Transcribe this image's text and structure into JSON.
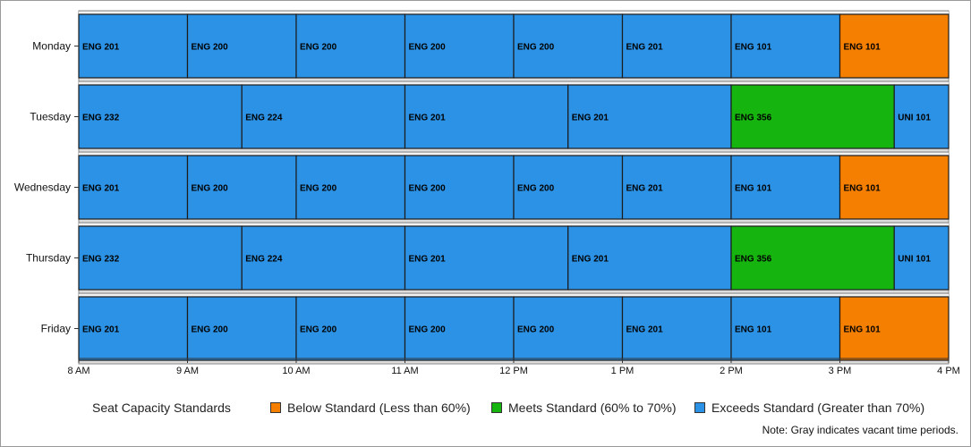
{
  "chart_data": {
    "type": "gantt",
    "title": "",
    "xlabel": "",
    "ylabel": "",
    "x_ticks": [
      "8 AM",
      "9 AM",
      "10 AM",
      "11 AM",
      "12 PM",
      "1 PM",
      "2 PM",
      "3 PM",
      "4 PM"
    ],
    "x_range": [
      "8 AM",
      "4 PM"
    ],
    "categories": [
      "Monday",
      "Tuesday",
      "Wednesday",
      "Thursday",
      "Friday"
    ],
    "grid": false,
    "legend_placement": "bottom",
    "colors": {
      "below": "#f57f00",
      "meets": "#16b40f",
      "exceeds": "#2b92e6",
      "vacant": "#d8d8d8"
    },
    "rows": [
      {
        "day": "Monday",
        "sessions": [
          {
            "course": "ENG 201",
            "start": "8:00 AM",
            "end": "9:00 AM",
            "status": "exceeds"
          },
          {
            "course": "ENG 200",
            "start": "9:00 AM",
            "end": "10:00 AM",
            "status": "exceeds"
          },
          {
            "course": "ENG 200",
            "start": "10:00 AM",
            "end": "11:00 AM",
            "status": "exceeds"
          },
          {
            "course": "ENG 200",
            "start": "11:00 AM",
            "end": "12:00 PM",
            "status": "exceeds"
          },
          {
            "course": "ENG 200",
            "start": "12:00 PM",
            "end": "1:00 PM",
            "status": "exceeds"
          },
          {
            "course": "ENG 201",
            "start": "1:00 PM",
            "end": "2:00 PM",
            "status": "exceeds"
          },
          {
            "course": "ENG 101",
            "start": "2:00 PM",
            "end": "3:00 PM",
            "status": "exceeds"
          },
          {
            "course": "ENG 101",
            "start": "3:00 PM",
            "end": "4:00 PM",
            "status": "below"
          }
        ]
      },
      {
        "day": "Tuesday",
        "sessions": [
          {
            "course": "ENG 232",
            "start": "8:00 AM",
            "end": "9:30 AM",
            "status": "exceeds"
          },
          {
            "course": "ENG 224",
            "start": "9:30 AM",
            "end": "11:00 AM",
            "status": "exceeds"
          },
          {
            "course": "ENG 201",
            "start": "11:00 AM",
            "end": "12:30 PM",
            "status": "exceeds"
          },
          {
            "course": "ENG 201",
            "start": "12:30 PM",
            "end": "2:00 PM",
            "status": "exceeds"
          },
          {
            "course": "ENG 356",
            "start": "2:00 PM",
            "end": "3:30 PM",
            "status": "meets"
          },
          {
            "course": "UNI 101",
            "start": "3:30 PM",
            "end": "4:00 PM",
            "status": "exceeds"
          }
        ]
      },
      {
        "day": "Wednesday",
        "sessions": [
          {
            "course": "ENG 201",
            "start": "8:00 AM",
            "end": "9:00 AM",
            "status": "exceeds"
          },
          {
            "course": "ENG 200",
            "start": "9:00 AM",
            "end": "10:00 AM",
            "status": "exceeds"
          },
          {
            "course": "ENG 200",
            "start": "10:00 AM",
            "end": "11:00 AM",
            "status": "exceeds"
          },
          {
            "course": "ENG 200",
            "start": "11:00 AM",
            "end": "12:00 PM",
            "status": "exceeds"
          },
          {
            "course": "ENG 200",
            "start": "12:00 PM",
            "end": "1:00 PM",
            "status": "exceeds"
          },
          {
            "course": "ENG 201",
            "start": "1:00 PM",
            "end": "2:00 PM",
            "status": "exceeds"
          },
          {
            "course": "ENG 101",
            "start": "2:00 PM",
            "end": "3:00 PM",
            "status": "exceeds"
          },
          {
            "course": "ENG 101",
            "start": "3:00 PM",
            "end": "4:00 PM",
            "status": "below"
          }
        ]
      },
      {
        "day": "Thursday",
        "sessions": [
          {
            "course": "ENG 232",
            "start": "8:00 AM",
            "end": "9:30 AM",
            "status": "exceeds"
          },
          {
            "course": "ENG 224",
            "start": "9:30 AM",
            "end": "11:00 AM",
            "status": "exceeds"
          },
          {
            "course": "ENG 201",
            "start": "11:00 AM",
            "end": "12:30 PM",
            "status": "exceeds"
          },
          {
            "course": "ENG 201",
            "start": "12:30 PM",
            "end": "2:00 PM",
            "status": "exceeds"
          },
          {
            "course": "ENG 356",
            "start": "2:00 PM",
            "end": "3:30 PM",
            "status": "meets"
          },
          {
            "course": "UNI 101",
            "start": "3:30 PM",
            "end": "4:00 PM",
            "status": "exceeds"
          }
        ]
      },
      {
        "day": "Friday",
        "sessions": [
          {
            "course": "ENG 201",
            "start": "8:00 AM",
            "end": "9:00 AM",
            "status": "exceeds"
          },
          {
            "course": "ENG 200",
            "start": "9:00 AM",
            "end": "10:00 AM",
            "status": "exceeds"
          },
          {
            "course": "ENG 200",
            "start": "10:00 AM",
            "end": "11:00 AM",
            "status": "exceeds"
          },
          {
            "course": "ENG 200",
            "start": "11:00 AM",
            "end": "12:00 PM",
            "status": "exceeds"
          },
          {
            "course": "ENG 200",
            "start": "12:00 PM",
            "end": "1:00 PM",
            "status": "exceeds"
          },
          {
            "course": "ENG 201",
            "start": "1:00 PM",
            "end": "2:00 PM",
            "status": "exceeds"
          },
          {
            "course": "ENG 101",
            "start": "2:00 PM",
            "end": "3:00 PM",
            "status": "exceeds"
          },
          {
            "course": "ENG 101",
            "start": "3:00 PM",
            "end": "4:00 PM",
            "status": "below"
          }
        ]
      }
    ]
  },
  "legend": {
    "title": "Seat Capacity Standards",
    "items": [
      {
        "key": "below",
        "label": "Below Standard (Less than 60%)"
      },
      {
        "key": "meets",
        "label": "Meets Standard (60% to 70%)"
      },
      {
        "key": "exceeds",
        "label": "Exceeds Standard (Greater than 70%)"
      }
    ]
  },
  "note": "Note: Gray indicates vacant time periods."
}
